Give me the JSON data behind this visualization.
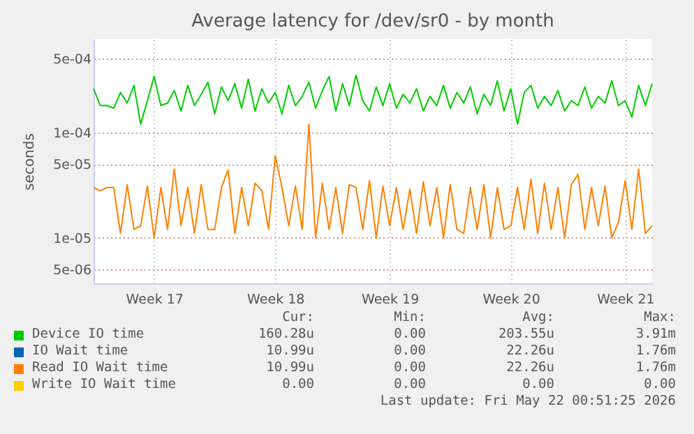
{
  "chart_data": {
    "type": "line",
    "title": "Average latency for /dev/sr0 - by month",
    "ylabel": "seconds",
    "log": "y",
    "grid": true,
    "legend": "bottom",
    "marker": "none",
    "line_style": "solid",
    "ylim": [
      3.7e-06,
      0.00077
    ],
    "yticks": [
      {
        "value": 5e-06,
        "label": "5e-06"
      },
      {
        "value": 1e-05,
        "label": "1e-05"
      },
      {
        "value": 5e-05,
        "label": "5e-05"
      },
      {
        "value": 0.0001,
        "label": "1e-04"
      },
      {
        "value": 0.0005,
        "label": "5e-04"
      }
    ],
    "categories": [
      null,
      null,
      null,
      null,
      null,
      null,
      null,
      null,
      null,
      "Week 17",
      null,
      null,
      null,
      null,
      null,
      null,
      null,
      null,
      null,
      null,
      null,
      null,
      null,
      null,
      null,
      null,
      null,
      "Week 18",
      null,
      null,
      null,
      null,
      null,
      null,
      null,
      null,
      null,
      null,
      null,
      null,
      null,
      null,
      null,
      null,
      "Week 19",
      null,
      null,
      null,
      null,
      null,
      null,
      null,
      null,
      null,
      null,
      null,
      null,
      null,
      null,
      null,
      null,
      null,
      "Week 20",
      null,
      null,
      null,
      null,
      null,
      null,
      null,
      null,
      null,
      null,
      null,
      null,
      null,
      null,
      null,
      null,
      "Week 21",
      null,
      null,
      null,
      null
    ],
    "series": [
      {
        "name": "Device IO time",
        "color": "#00cc00",
        "values": [
          0.00026,
          0.00018,
          0.00018,
          0.00017,
          0.00024,
          0.00019,
          0.00028,
          0.00012,
          0.0002,
          0.00034,
          0.00018,
          0.00019,
          0.00025,
          0.00016,
          0.00028,
          0.00018,
          0.00023,
          0.0003,
          0.00015,
          0.00027,
          0.0002,
          0.00029,
          0.00017,
          0.00032,
          0.00016,
          0.00026,
          0.00019,
          0.00024,
          0.00015,
          0.00028,
          0.00018,
          0.00022,
          0.0003,
          0.00017,
          0.00025,
          0.00034,
          0.00016,
          0.00029,
          0.00018,
          0.00035,
          0.0002,
          0.00016,
          0.00027,
          0.00018,
          0.00029,
          0.00017,
          0.00023,
          0.00019,
          0.00026,
          0.00016,
          0.00022,
          0.00018,
          0.00028,
          0.00017,
          0.00024,
          0.00019,
          0.00027,
          0.00015,
          0.00023,
          0.00018,
          0.00031,
          0.00016,
          0.00026,
          0.00012,
          0.00024,
          0.00028,
          0.00017,
          0.00022,
          0.00018,
          0.00025,
          0.00016,
          0.0002,
          0.00018,
          0.00027,
          0.00017,
          0.00022,
          0.00019,
          0.00031,
          0.00018,
          0.0002,
          0.00014,
          0.00028,
          0.00018,
          0.00029
        ]
      },
      {
        "name": "IO Wait time",
        "color": "#0066b3",
        "values": [
          null,
          null,
          null,
          null,
          null,
          null,
          null,
          null,
          null,
          null,
          null,
          null,
          null,
          null,
          null,
          null,
          null,
          null,
          null,
          null,
          null,
          null,
          null,
          null,
          null,
          null,
          null,
          null,
          null,
          null,
          null,
          null,
          null,
          null,
          null,
          null,
          null,
          null,
          null,
          null,
          null,
          null,
          null,
          null,
          null,
          null,
          null,
          null,
          null,
          null,
          null,
          null,
          null,
          null,
          null,
          null,
          null,
          null,
          null,
          null,
          null,
          null,
          null,
          null,
          null,
          null,
          null,
          null,
          null,
          null,
          null,
          null,
          null,
          null,
          null,
          null,
          null,
          null,
          null,
          null,
          null,
          null,
          null,
          null
        ]
      },
      {
        "name": "Read IO Wait time",
        "color": "#ff8000",
        "values": [
          3e-05,
          2.8e-05,
          3e-05,
          3e-05,
          1.1e-05,
          3.2e-05,
          1.2e-05,
          1.3e-05,
          3.1e-05,
          1e-05,
          3e-05,
          1.2e-05,
          4.5e-05,
          1.3e-05,
          3e-05,
          1.1e-05,
          3.2e-05,
          1.2e-05,
          1.2e-05,
          3e-05,
          4.4e-05,
          1.1e-05,
          3e-05,
          1.3e-05,
          3.3e-05,
          2.8e-05,
          1.2e-05,
          6e-05,
          3e-05,
          1.3e-05,
          3.1e-05,
          1.2e-05,
          0.00012,
          1e-05,
          3.3e-05,
          1.2e-05,
          3e-05,
          1.1e-05,
          3.2e-05,
          3e-05,
          1.2e-05,
          3.5e-05,
          1e-05,
          3.1e-05,
          1.3e-05,
          3e-05,
          1.2e-05,
          2.9e-05,
          1.1e-05,
          3.4e-05,
          1.3e-05,
          3e-05,
          1e-05,
          3.2e-05,
          1.2e-05,
          1.1e-05,
          3e-05,
          1.2e-05,
          3.2e-05,
          1e-05,
          3e-05,
          1.2e-05,
          1.3e-05,
          3e-05,
          1.2e-05,
          3.6e-05,
          1.1e-05,
          3.3e-05,
          1.2e-05,
          3e-05,
          1e-05,
          3.2e-05,
          4e-05,
          1.2e-05,
          3e-05,
          1.3e-05,
          3.1e-05,
          1e-05,
          1.4e-05,
          3.5e-05,
          1.2e-05,
          4.5e-05,
          1.1e-05,
          1.3e-05
        ]
      },
      {
        "name": "Write IO Wait time",
        "color": "#ffcc00",
        "values": [
          null,
          null,
          null,
          null,
          null,
          null,
          null,
          null,
          null,
          null,
          null,
          null,
          null,
          null,
          null,
          null,
          null,
          null,
          null,
          null,
          null,
          null,
          null,
          null,
          null,
          null,
          null,
          null,
          null,
          null,
          null,
          null,
          null,
          null,
          null,
          null,
          null,
          null,
          null,
          null,
          null,
          null,
          null,
          null,
          null,
          null,
          null,
          null,
          null,
          null,
          null,
          null,
          null,
          null,
          null,
          null,
          null,
          null,
          null,
          null,
          null,
          null,
          null,
          null,
          null,
          null,
          null,
          null,
          null,
          null,
          null,
          null,
          null,
          null,
          null,
          null,
          null,
          null,
          null,
          null,
          null,
          null,
          null,
          null
        ]
      }
    ],
    "annotations": [
      "Cur:",
      "Min:",
      "Avg:",
      "Max:",
      "160.28u",
      "0.00",
      "203.55u",
      "3.91m",
      "10.99u",
      "0.00",
      "22.26u",
      "1.76m",
      "10.99u",
      "0.00",
      "22.26u",
      "1.76m",
      "0.00",
      "0.00",
      "0.00",
      "0.00",
      "Last update: Fri May 22 00:51:25 2026"
    ]
  }
}
